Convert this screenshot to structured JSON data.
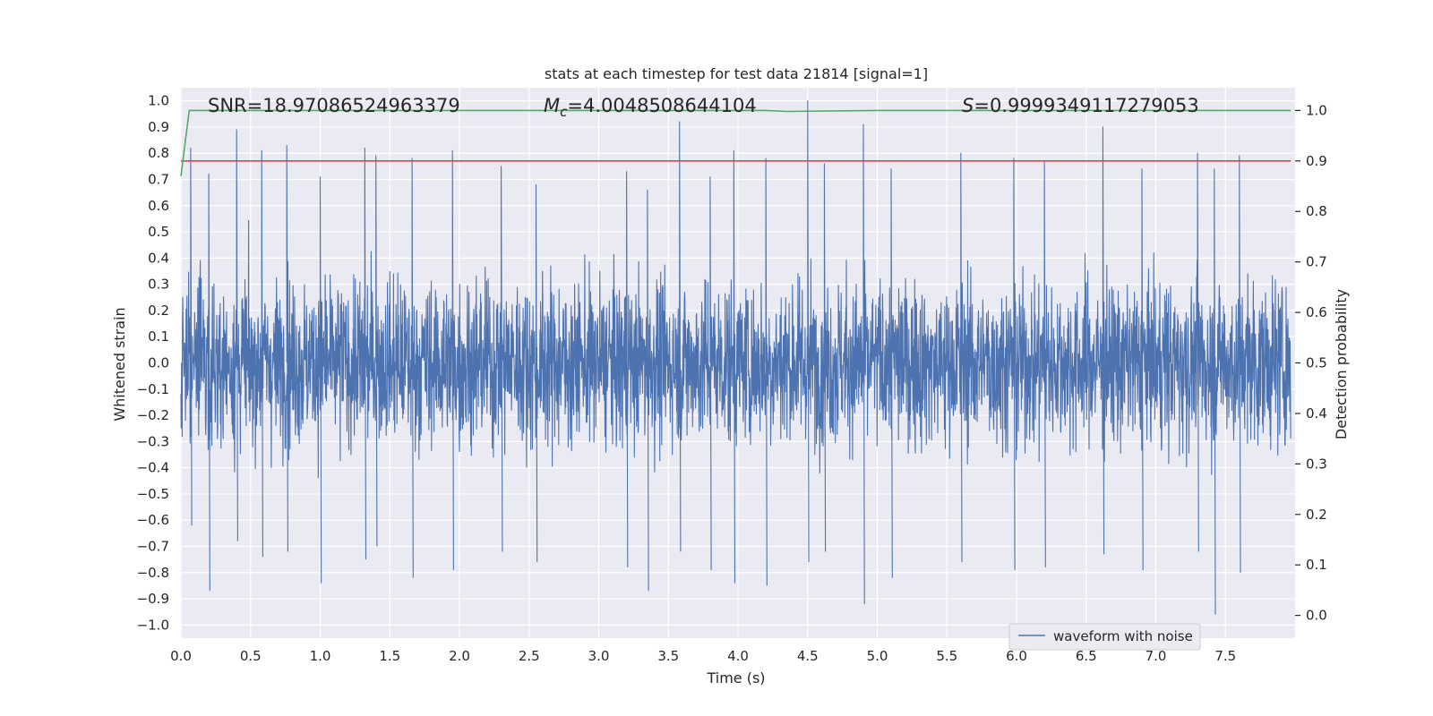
{
  "chart_data": {
    "type": "line",
    "title": "stats at each timestep for test data 21814 [signal=1]",
    "xlabel": "Time (s)",
    "ylabel_left": "Whitened strain",
    "ylabel_right": "Detection probability",
    "xlim": [
      0.0,
      8.0
    ],
    "ylim_left": [
      -1.05,
      1.05
    ],
    "ylim_right": [
      -0.045,
      1.045
    ],
    "x_ticks": [
      0.0,
      0.5,
      1.0,
      1.5,
      2.0,
      2.5,
      3.0,
      3.5,
      4.0,
      4.5,
      5.0,
      5.5,
      6.0,
      6.5,
      7.0,
      7.5
    ],
    "x_tick_labels": [
      "0.0",
      "0.5",
      "1.0",
      "1.5",
      "2.0",
      "2.5",
      "3.0",
      "3.5",
      "4.0",
      "4.5",
      "5.0",
      "5.5",
      "6.0",
      "6.5",
      "7.0",
      "7.5"
    ],
    "y_left_ticks": [
      1.0,
      0.9,
      0.8,
      0.7,
      0.6,
      0.5,
      0.4,
      0.3,
      0.2,
      0.1,
      0.0,
      -0.1,
      -0.2,
      -0.3,
      -0.4,
      -0.5,
      -0.6,
      -0.7,
      -0.8,
      -0.9,
      -1.0
    ],
    "y_left_tick_labels": [
      "1.0",
      "0.9",
      "0.8",
      "0.7",
      "0.6",
      "0.5",
      "0.4",
      "0.3",
      "0.2",
      "0.1",
      "0.0",
      "−0.1",
      "−0.2",
      "−0.3",
      "−0.4",
      "−0.5",
      "−0.6",
      "−0.7",
      "−0.8",
      "−0.9",
      "−1.0"
    ],
    "y_right_ticks": [
      1.0,
      0.9,
      0.8,
      0.7,
      0.6,
      0.5,
      0.4,
      0.3,
      0.2,
      0.1,
      0.0
    ],
    "y_right_tick_labels": [
      "1.0",
      "0.9",
      "0.8",
      "0.7",
      "0.6",
      "0.5",
      "0.4",
      "0.3",
      "0.2",
      "0.1",
      "0.0"
    ],
    "grid": true,
    "legend_placement": "lower-right",
    "annotations": {
      "snr": "SNR=18.97086524963379",
      "mc_symbol": "M",
      "mc_sub": "c",
      "mc_value": "=4.0048508644104",
      "s_symbol": "S",
      "s_value": "=0.9999349117279053"
    },
    "series": [
      {
        "name": "waveform with noise",
        "axis": "left",
        "color": "#4c72b0",
        "style": "dense noisy waveform spanning 0.0 to 7.97 s",
        "envelope_peaks": [
          [
            0.07,
            0.82,
            -0.62
          ],
          [
            0.2,
            0.72,
            -0.87
          ],
          [
            0.4,
            0.89,
            -0.68
          ],
          [
            0.58,
            0.81,
            -0.74
          ],
          [
            0.76,
            0.83,
            -0.72
          ],
          [
            1.0,
            0.71,
            -0.84
          ],
          [
            1.32,
            0.82,
            -0.75
          ],
          [
            1.4,
            0.79,
            -0.7
          ],
          [
            1.66,
            0.78,
            -0.82
          ],
          [
            1.95,
            0.81,
            -0.79
          ],
          [
            2.3,
            0.75,
            -0.72
          ],
          [
            2.55,
            0.68,
            -0.76
          ],
          [
            3.2,
            0.73,
            -0.78
          ],
          [
            3.35,
            0.66,
            -0.87
          ],
          [
            3.58,
            0.92,
            -0.72
          ],
          [
            3.8,
            0.71,
            -0.79
          ],
          [
            3.97,
            0.81,
            -0.84
          ],
          [
            4.2,
            0.78,
            -0.85
          ],
          [
            4.5,
            1.0,
            -0.76
          ],
          [
            4.62,
            0.76,
            -0.72
          ],
          [
            4.9,
            0.91,
            -0.92
          ],
          [
            5.1,
            0.74,
            -0.82
          ],
          [
            5.6,
            0.8,
            -0.76
          ],
          [
            5.98,
            0.78,
            -0.79
          ],
          [
            6.2,
            0.77,
            -0.78
          ],
          [
            6.62,
            0.9,
            -0.73
          ],
          [
            6.9,
            0.74,
            -0.79
          ],
          [
            7.3,
            0.8,
            -0.72
          ],
          [
            7.42,
            0.74,
            -0.96
          ],
          [
            7.6,
            0.79,
            -0.8
          ]
        ]
      },
      {
        "name": "",
        "axis": "right",
        "color": "#55a868",
        "x": [
          0.0,
          0.06,
          0.1,
          1.0,
          2.0,
          3.0,
          4.0,
          4.2,
          4.35,
          5.0,
          6.0,
          7.0,
          7.97
        ],
        "y": [
          0.87,
          1.0,
          1.0,
          1.0,
          1.0,
          1.0,
          1.0,
          1.0,
          0.998,
          1.0,
          1.0,
          1.0,
          1.0
        ]
      },
      {
        "name": "",
        "axis": "right",
        "color": "#c44e52",
        "x": [
          0.0,
          7.97
        ],
        "y": [
          0.9,
          0.9
        ]
      }
    ]
  }
}
